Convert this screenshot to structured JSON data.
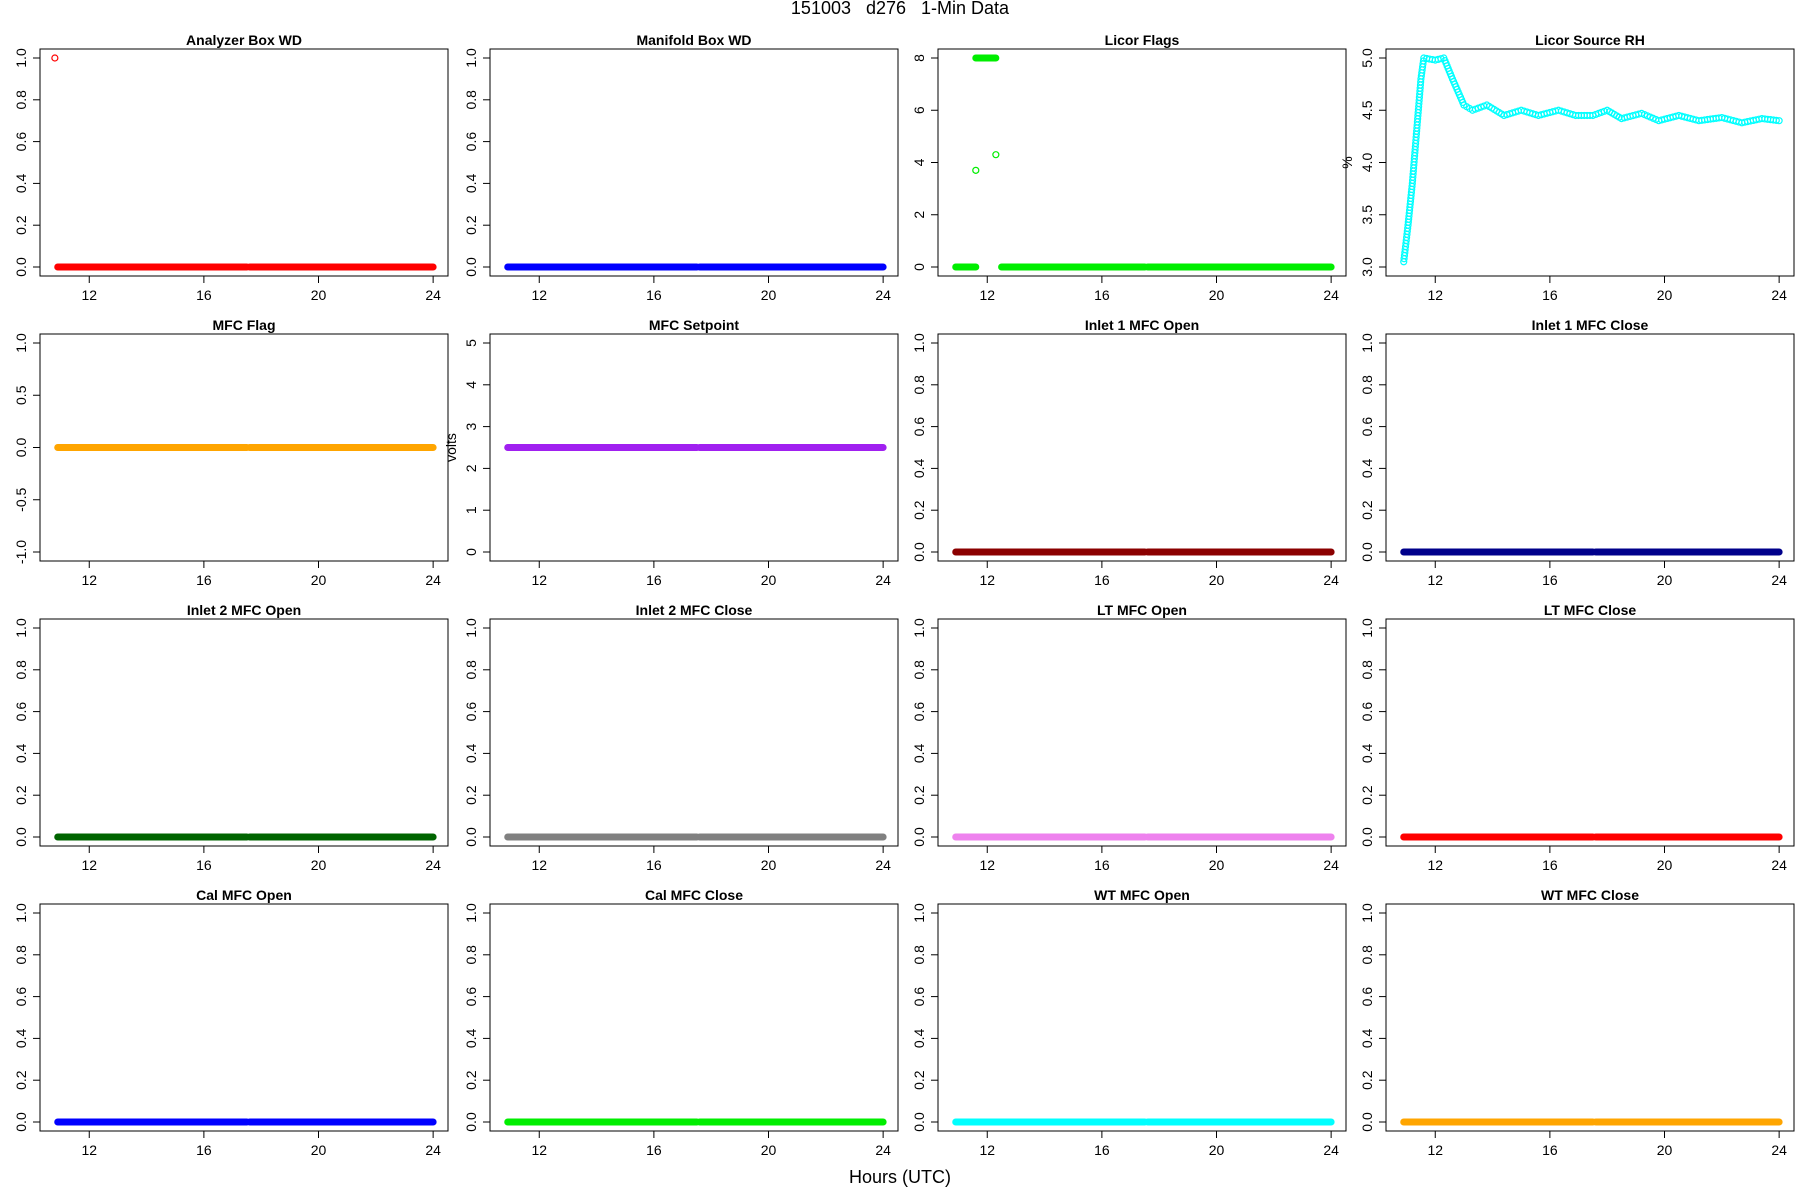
{
  "page": {
    "title": "151003   d276   1-Min Data",
    "xlabel": "Hours (UTC)"
  },
  "chart_data": [
    {
      "type": "scatter",
      "title": "Analyzer Box WD",
      "ylabel": "",
      "color": "#ff0000",
      "xlim": [
        10.7,
        24.1
      ],
      "ylim": [
        0,
        1
      ],
      "xticks": [
        "12",
        "16",
        "20",
        "24"
      ],
      "yticks": [
        "0.0",
        "0.2",
        "0.4",
        "0.6",
        "0.8",
        "1.0"
      ],
      "segments": [
        {
          "x": [
            10.9,
            17.5
          ],
          "y": 0
        },
        {
          "x": [
            17.6,
            24
          ]
        }
      ],
      "points": [
        {
          "x": 10.8,
          "y": 1.0
        }
      ]
    },
    {
      "type": "scatter",
      "title": "Manifold Box WD",
      "ylabel": "",
      "color": "#0000ff",
      "xlim": [
        10.7,
        24.1
      ],
      "ylim": [
        0,
        1
      ],
      "xticks": [
        "12",
        "16",
        "20",
        "24"
      ],
      "yticks": [
        "0.0",
        "0.2",
        "0.4",
        "0.6",
        "0.8",
        "1.0"
      ],
      "segments": [
        {
          "x": [
            10.9,
            17.5
          ],
          "y": 0
        },
        {
          "x": [
            17.6,
            24
          ],
          "y": 0
        }
      ]
    },
    {
      "type": "scatter",
      "title": "Licor Flags",
      "ylabel": "",
      "color": "#00ee00",
      "xlim": [
        10.7,
        24.1
      ],
      "ylim": [
        0,
        8
      ],
      "xticks": [
        "12",
        "16",
        "20",
        "24"
      ],
      "yticks": [
        "0",
        "2",
        "4",
        "6",
        "8"
      ],
      "segments": [
        {
          "x": [
            10.9,
            11.6
          ],
          "y": 0
        },
        {
          "x": [
            12.5,
            17.5
          ],
          "y": 0
        },
        {
          "x": [
            17.6,
            24
          ],
          "y": 0
        },
        {
          "x": [
            11.6,
            12.3
          ],
          "y": 8
        }
      ],
      "points": [
        {
          "x": 11.6,
          "y": 3.7
        },
        {
          "x": 12.3,
          "y": 4.3
        }
      ]
    },
    {
      "type": "scatter",
      "title": "Licor Source RH",
      "ylabel": "%",
      "color": "#00ffff",
      "xlim": [
        10.7,
        24.1
      ],
      "ylim": [
        3.0,
        5.0
      ],
      "xticks": [
        "12",
        "16",
        "20",
        "24"
      ],
      "yticks": [
        "3.0",
        "3.5",
        "4.0",
        "4.5",
        "5.0"
      ],
      "curve": [
        [
          10.9,
          3.05
        ],
        [
          11.05,
          3.4
        ],
        [
          11.2,
          3.8
        ],
        [
          11.35,
          4.3
        ],
        [
          11.5,
          4.8
        ],
        [
          11.6,
          5.0
        ],
        [
          12.0,
          4.98
        ],
        [
          12.3,
          5.0
        ],
        [
          12.6,
          4.8
        ],
        [
          13.0,
          4.55
        ],
        [
          13.3,
          4.5
        ],
        [
          13.8,
          4.55
        ],
        [
          14.4,
          4.45
        ],
        [
          15.0,
          4.5
        ],
        [
          15.6,
          4.45
        ],
        [
          16.3,
          4.5
        ],
        [
          16.9,
          4.45
        ],
        [
          17.5,
          4.45
        ],
        [
          18.0,
          4.5
        ],
        [
          18.5,
          4.42
        ],
        [
          19.2,
          4.47
        ],
        [
          19.8,
          4.4
        ],
        [
          20.5,
          4.45
        ],
        [
          21.2,
          4.4
        ],
        [
          22.0,
          4.43
        ],
        [
          22.7,
          4.38
        ],
        [
          23.4,
          4.42
        ],
        [
          24.0,
          4.4
        ]
      ]
    },
    {
      "type": "scatter",
      "title": "MFC Flag",
      "ylabel": "",
      "color": "#ffa500",
      "xlim": [
        10.7,
        24.1
      ],
      "ylim": [
        -1,
        1
      ],
      "xticks": [
        "12",
        "16",
        "20",
        "24"
      ],
      "yticks": [
        "-1.0",
        "-0.5",
        "0.0",
        "0.5",
        "1.0"
      ],
      "segments": [
        {
          "x": [
            10.9,
            17.5
          ],
          "y": 0
        },
        {
          "x": [
            17.6,
            24
          ],
          "y": 0
        }
      ]
    },
    {
      "type": "scatter",
      "title": "MFC Setpoint",
      "ylabel": "volts",
      "color": "#a020f0",
      "xlim": [
        10.7,
        24.1
      ],
      "ylim": [
        0,
        5
      ],
      "xticks": [
        "12",
        "16",
        "20",
        "24"
      ],
      "yticks": [
        "0",
        "1",
        "2",
        "3",
        "4",
        "5"
      ],
      "segments": [
        {
          "x": [
            10.9,
            17.5
          ],
          "y": 2.5
        },
        {
          "x": [
            17.6,
            24
          ],
          "y": 2.5
        }
      ]
    },
    {
      "type": "scatter",
      "title": "Inlet 1 MFC Open",
      "ylabel": "",
      "color": "#8b0000",
      "xlim": [
        10.7,
        24.1
      ],
      "ylim": [
        0,
        1
      ],
      "xticks": [
        "12",
        "16",
        "20",
        "24"
      ],
      "yticks": [
        "0.0",
        "0.2",
        "0.4",
        "0.6",
        "0.8",
        "1.0"
      ],
      "segments": [
        {
          "x": [
            10.9,
            17.5
          ],
          "y": 0
        },
        {
          "x": [
            17.6,
            24
          ],
          "y": 0
        }
      ]
    },
    {
      "type": "scatter",
      "title": "Inlet 1 MFC Close",
      "ylabel": "",
      "color": "#00008b",
      "xlim": [
        10.7,
        24.1
      ],
      "ylim": [
        0,
        1
      ],
      "xticks": [
        "12",
        "16",
        "20",
        "24"
      ],
      "yticks": [
        "0.0",
        "0.2",
        "0.4",
        "0.6",
        "0.8",
        "1.0"
      ],
      "segments": [
        {
          "x": [
            10.9,
            17.5
          ],
          "y": 0
        },
        {
          "x": [
            17.6,
            24
          ],
          "y": 0
        }
      ]
    },
    {
      "type": "scatter",
      "title": "Inlet 2 MFC Open",
      "ylabel": "",
      "color": "#006400",
      "xlim": [
        10.7,
        24.1
      ],
      "ylim": [
        0,
        1
      ],
      "xticks": [
        "12",
        "16",
        "20",
        "24"
      ],
      "yticks": [
        "0.0",
        "0.2",
        "0.4",
        "0.6",
        "0.8",
        "1.0"
      ],
      "segments": [
        {
          "x": [
            10.9,
            17.5
          ],
          "y": 0
        },
        {
          "x": [
            17.6,
            24
          ],
          "y": 0
        }
      ]
    },
    {
      "type": "scatter",
      "title": "Inlet 2 MFC Close",
      "ylabel": "",
      "color": "#808080",
      "xlim": [
        10.7,
        24.1
      ],
      "ylim": [
        0,
        1
      ],
      "xticks": [
        "12",
        "16",
        "20",
        "24"
      ],
      "yticks": [
        "0.0",
        "0.2",
        "0.4",
        "0.6",
        "0.8",
        "1.0"
      ],
      "segments": [
        {
          "x": [
            10.9,
            17.5
          ],
          "y": 0
        },
        {
          "x": [
            17.6,
            24
          ],
          "y": 0
        }
      ]
    },
    {
      "type": "scatter",
      "title": "LT MFC Open",
      "ylabel": "",
      "color": "#ee82ee",
      "xlim": [
        10.7,
        24.1
      ],
      "ylim": [
        0,
        1
      ],
      "xticks": [
        "12",
        "16",
        "20",
        "24"
      ],
      "yticks": [
        "0.0",
        "0.2",
        "0.4",
        "0.6",
        "0.8",
        "1.0"
      ],
      "segments": [
        {
          "x": [
            10.9,
            17.5
          ],
          "y": 0
        },
        {
          "x": [
            17.6,
            24
          ],
          "y": 0
        }
      ]
    },
    {
      "type": "scatter",
      "title": "LT MFC Close",
      "ylabel": "",
      "color": "#ff0000",
      "xlim": [
        10.7,
        24.1
      ],
      "ylim": [
        0,
        1
      ],
      "xticks": [
        "12",
        "16",
        "20",
        "24"
      ],
      "yticks": [
        "0.0",
        "0.2",
        "0.4",
        "0.6",
        "0.8",
        "1.0"
      ],
      "segments": [
        {
          "x": [
            10.9,
            17.5
          ],
          "y": 0
        },
        {
          "x": [
            17.6,
            24
          ],
          "y": 0
        }
      ]
    },
    {
      "type": "scatter",
      "title": "Cal MFC Open",
      "ylabel": "",
      "color": "#0000ff",
      "xlim": [
        10.7,
        24.1
      ],
      "ylim": [
        0,
        1
      ],
      "xticks": [
        "12",
        "16",
        "20",
        "24"
      ],
      "yticks": [
        "0.0",
        "0.2",
        "0.4",
        "0.6",
        "0.8",
        "1.0"
      ],
      "segments": [
        {
          "x": [
            10.9,
            17.5
          ],
          "y": 0
        },
        {
          "x": [
            17.6,
            24
          ],
          "y": 0
        }
      ]
    },
    {
      "type": "scatter",
      "title": "Cal MFC Close",
      "ylabel": "",
      "color": "#00ee00",
      "xlim": [
        10.7,
        24.1
      ],
      "ylim": [
        0,
        1
      ],
      "xticks": [
        "12",
        "16",
        "20",
        "24"
      ],
      "yticks": [
        "0.0",
        "0.2",
        "0.4",
        "0.6",
        "0.8",
        "1.0"
      ],
      "segments": [
        {
          "x": [
            10.9,
            17.5
          ],
          "y": 0
        },
        {
          "x": [
            17.6,
            24
          ],
          "y": 0
        }
      ]
    },
    {
      "type": "scatter",
      "title": "WT MFC Open",
      "ylabel": "",
      "color": "#00ffff",
      "xlim": [
        10.7,
        24.1
      ],
      "ylim": [
        0,
        1
      ],
      "xticks": [
        "12",
        "16",
        "20",
        "24"
      ],
      "yticks": [
        "0.0",
        "0.2",
        "0.4",
        "0.6",
        "0.8",
        "1.0"
      ],
      "segments": [
        {
          "x": [
            10.9,
            17.5
          ],
          "y": 0
        },
        {
          "x": [
            17.6,
            24
          ],
          "y": 0
        }
      ]
    },
    {
      "type": "scatter",
      "title": "WT MFC Close",
      "ylabel": "",
      "color": "#ffa500",
      "xlim": [
        10.7,
        24.1
      ],
      "ylim": [
        0,
        1
      ],
      "xticks": [
        "12",
        "16",
        "20",
        "24"
      ],
      "yticks": [
        "0.0",
        "0.2",
        "0.4",
        "0.6",
        "0.8",
        "1.0"
      ],
      "segments": [
        {
          "x": [
            10.9,
            17.5
          ],
          "y": 0
        },
        {
          "x": [
            17.6,
            24
          ],
          "y": 0
        }
      ]
    }
  ]
}
